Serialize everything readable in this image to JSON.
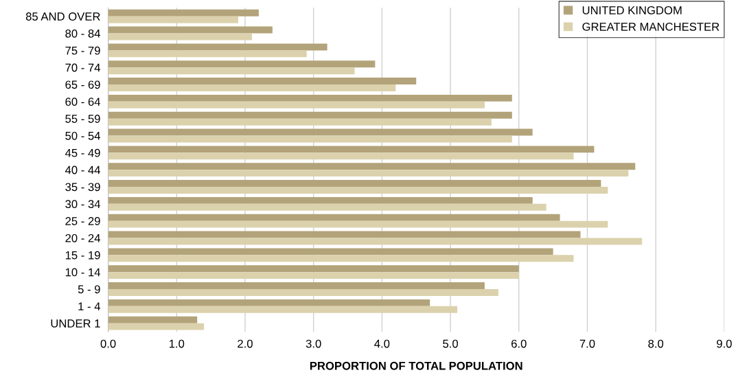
{
  "chart_data": {
    "type": "bar",
    "orientation": "horizontal",
    "xlabel": "PROPORTION OF TOTAL POPULATION",
    "categories": [
      "85 AND OVER",
      "80 - 84",
      "75 - 79",
      "70 - 74",
      "65 - 69",
      "60 - 64",
      "55 - 59",
      "50 - 54",
      "45 - 49",
      "40 - 44",
      "35 - 39",
      "30 - 34",
      "25 - 29",
      "20 - 24",
      "15 - 19",
      "10 - 14",
      "5 - 9",
      "1 - 4",
      "UNDER 1"
    ],
    "series": [
      {
        "name": "UNITED KINGDOM",
        "color": "#b3a37a",
        "values": [
          2.2,
          2.4,
          3.2,
          3.9,
          4.5,
          5.9,
          5.9,
          6.2,
          7.1,
          7.7,
          7.2,
          6.2,
          6.6,
          6.9,
          6.5,
          6.0,
          5.5,
          4.7,
          1.3
        ]
      },
      {
        "name": "GREATER MANCHESTER",
        "color": "#dbd2ad",
        "values": [
          1.9,
          2.1,
          2.9,
          3.6,
          4.2,
          5.5,
          5.6,
          5.9,
          6.8,
          7.6,
          7.3,
          6.4,
          7.3,
          7.8,
          6.8,
          6.0,
          5.7,
          5.1,
          1.4
        ]
      }
    ],
    "xlim": [
      0,
      9
    ],
    "xticks": [
      {
        "value": 0,
        "label": "0.0"
      },
      {
        "value": 1,
        "label": "1.0"
      },
      {
        "value": 2,
        "label": "2.0"
      },
      {
        "value": 3,
        "label": "3.0"
      },
      {
        "value": 4,
        "label": "4.0"
      },
      {
        "value": 5,
        "label": "5.0"
      },
      {
        "value": 6,
        "label": "6.0"
      },
      {
        "value": 7,
        "label": "7.0"
      },
      {
        "value": 8,
        "label": "8.0"
      },
      {
        "value": 9,
        "label": "9.0"
      }
    ],
    "grid": "x",
    "legend": "top right"
  }
}
